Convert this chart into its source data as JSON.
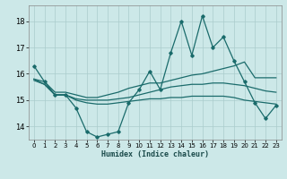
{
  "xlabel": "Humidex (Indice chaleur)",
  "bg_color": "#cce8e8",
  "grid_color": "#aacccc",
  "line_color": "#1a6b6b",
  "x_ticks": [
    0,
    1,
    2,
    3,
    4,
    5,
    6,
    7,
    8,
    9,
    10,
    11,
    12,
    13,
    14,
    15,
    16,
    17,
    18,
    19,
    20,
    21,
    22,
    23
  ],
  "y_ticks": [
    14,
    15,
    16,
    17,
    18
  ],
  "xlim": [
    -0.5,
    23.5
  ],
  "ylim": [
    13.5,
    18.6
  ],
  "series1_x": [
    0,
    1,
    2,
    3,
    4,
    5,
    6,
    7,
    8,
    9,
    10,
    11,
    12,
    13,
    14,
    15,
    16,
    17,
    18,
    19,
    20,
    21,
    22,
    23
  ],
  "series1_y": [
    16.3,
    15.7,
    15.2,
    15.2,
    14.7,
    13.8,
    13.6,
    13.7,
    13.8,
    14.9,
    15.4,
    16.1,
    15.4,
    16.8,
    18.0,
    16.7,
    18.2,
    17.0,
    17.4,
    16.5,
    15.7,
    14.9,
    14.3,
    14.8
  ],
  "series2_x": [
    0,
    1,
    2,
    3,
    4,
    5,
    6,
    7,
    8,
    9,
    10,
    11,
    12,
    13,
    14,
    15,
    16,
    17,
    18,
    19,
    20,
    21,
    22,
    23
  ],
  "series2_y": [
    15.8,
    15.7,
    15.3,
    15.3,
    15.2,
    15.1,
    15.1,
    15.2,
    15.3,
    15.45,
    15.55,
    15.65,
    15.65,
    15.75,
    15.85,
    15.95,
    16.0,
    16.1,
    16.2,
    16.3,
    16.45,
    15.85,
    15.85,
    15.85
  ],
  "series3_x": [
    0,
    1,
    2,
    3,
    4,
    5,
    6,
    7,
    8,
    9,
    10,
    11,
    12,
    13,
    14,
    15,
    16,
    17,
    18,
    19,
    20,
    21,
    22,
    23
  ],
  "series3_y": [
    15.8,
    15.6,
    15.2,
    15.2,
    15.0,
    14.9,
    14.85,
    14.85,
    14.9,
    14.95,
    15.0,
    15.05,
    15.05,
    15.1,
    15.1,
    15.15,
    15.15,
    15.15,
    15.15,
    15.1,
    15.0,
    14.95,
    14.9,
    14.85
  ],
  "series4_x": [
    0,
    1,
    2,
    3,
    4,
    5,
    6,
    7,
    8,
    9,
    10,
    11,
    12,
    13,
    14,
    15,
    16,
    17,
    18,
    19,
    20,
    21,
    22,
    23
  ],
  "series4_y": [
    15.75,
    15.6,
    15.2,
    15.2,
    15.05,
    15.0,
    15.0,
    15.0,
    15.05,
    15.1,
    15.2,
    15.3,
    15.4,
    15.5,
    15.55,
    15.6,
    15.6,
    15.65,
    15.65,
    15.6,
    15.55,
    15.45,
    15.35,
    15.3
  ]
}
